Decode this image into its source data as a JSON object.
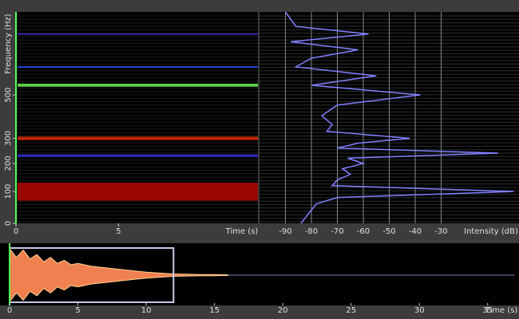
{
  "spectrogram": {
    "freq_label": "Frequency (Hz)",
    "time_label": "Time (s)",
    "ylim": [
      0,
      1000
    ],
    "yscale": "mel",
    "yticks": [
      0,
      100,
      200,
      300,
      500
    ],
    "xlim": [
      0,
      11.8
    ],
    "xticks": [
      0,
      5
    ],
    "bands": [
      {
        "freq": 100,
        "bandwidth": 60,
        "level": -2
      },
      {
        "freq": 230,
        "bandwidth": 10,
        "level": -75
      },
      {
        "freq": 300,
        "bandwidth": 14,
        "level": -10
      },
      {
        "freq": 550,
        "bandwidth": 16,
        "level": -45
      },
      {
        "freq": 650,
        "bandwidth": 8,
        "level": -70
      },
      {
        "freq": 850,
        "bandwidth": 8,
        "level": -78
      }
    ]
  },
  "spectrum": {
    "x_label": "Intensity (dB)",
    "xlim": [
      -100,
      0
    ],
    "xticks": [
      -90,
      -80,
      -70,
      -60,
      -50,
      -40,
      -30
    ],
    "color": "#8080ff",
    "freqs": [
      0,
      20,
      40,
      60,
      80,
      100,
      120,
      140,
      160,
      180,
      200,
      220,
      240,
      260,
      280,
      300,
      330,
      360,
      400,
      450,
      500,
      550,
      600,
      650,
      700,
      750,
      800,
      850,
      900,
      950,
      1000
    ],
    "values": [
      -84,
      -82,
      -80,
      -78,
      -70,
      -2,
      -72,
      -70,
      -65,
      -68,
      -60,
      -66,
      -8,
      -70,
      -62,
      -42,
      -74,
      -72,
      -76,
      -70,
      -38,
      -80,
      -55,
      -86,
      -80,
      -62,
      -88,
      -58,
      -86,
      -88,
      -90
    ]
  },
  "waveform": {
    "time_label": "Time (s)",
    "xlim": [
      0,
      37
    ],
    "xticks": [
      0,
      5,
      10,
      15,
      20,
      25,
      30,
      35
    ],
    "ylim": [
      -1,
      1
    ],
    "selection": [
      0,
      12
    ],
    "color": "#f08050",
    "t": [
      0,
      0.5,
      1,
      1.5,
      2,
      2.5,
      3,
      3.5,
      4,
      4.5,
      5,
      6,
      7,
      8,
      9,
      10,
      11,
      12,
      13,
      14,
      15,
      16
    ],
    "amp": [
      0.9,
      0.6,
      0.85,
      0.55,
      0.7,
      0.45,
      0.6,
      0.4,
      0.5,
      0.35,
      0.4,
      0.3,
      0.25,
      0.2,
      0.15,
      0.1,
      0.07,
      0.04,
      0.03,
      0.02,
      0.02,
      0.01
    ]
  }
}
